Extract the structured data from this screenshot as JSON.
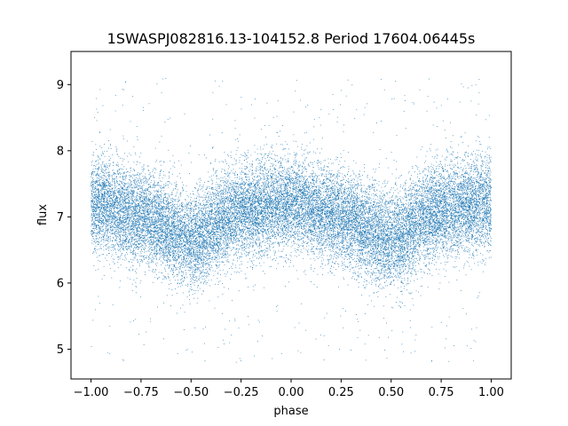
{
  "chart_data": {
    "type": "scatter",
    "title": "1SWASPJ082816.13-104152.8 Period 17604.06445s",
    "xlabel": "phase",
    "ylabel": "flux",
    "xlim": [
      -1.1,
      1.1
    ],
    "ylim": [
      4.55,
      9.5
    ],
    "xticks": [
      -1.0,
      -0.75,
      -0.5,
      -0.25,
      0.0,
      0.25,
      0.5,
      0.75,
      1.0
    ],
    "xtick_labels": [
      "−1.00",
      "−0.75",
      "−0.50",
      "−0.25",
      "0.00",
      "0.25",
      "0.50",
      "0.75",
      "1.00"
    ],
    "yticks": [
      5,
      6,
      7,
      8,
      9
    ],
    "ytick_labels": [
      "5",
      "6",
      "7",
      "8",
      "9"
    ],
    "grid": false,
    "legend": "none",
    "marker_color": "#1f77b4",
    "series": [
      {
        "phase_range": [
          -1.0,
          1.0
        ],
        "mean_curve": {
          "x": [
            -1.0,
            -0.75,
            -0.5,
            -0.25,
            0.0,
            0.25,
            0.5,
            0.75,
            1.0
          ],
          "y": [
            7.2,
            7.0,
            6.65,
            7.1,
            7.2,
            7.0,
            6.65,
            7.1,
            7.2
          ]
        },
        "scatter_sigma": 0.35,
        "n_points": 24000,
        "outlier_range": [
          4.8,
          9.1
        ]
      }
    ]
  }
}
